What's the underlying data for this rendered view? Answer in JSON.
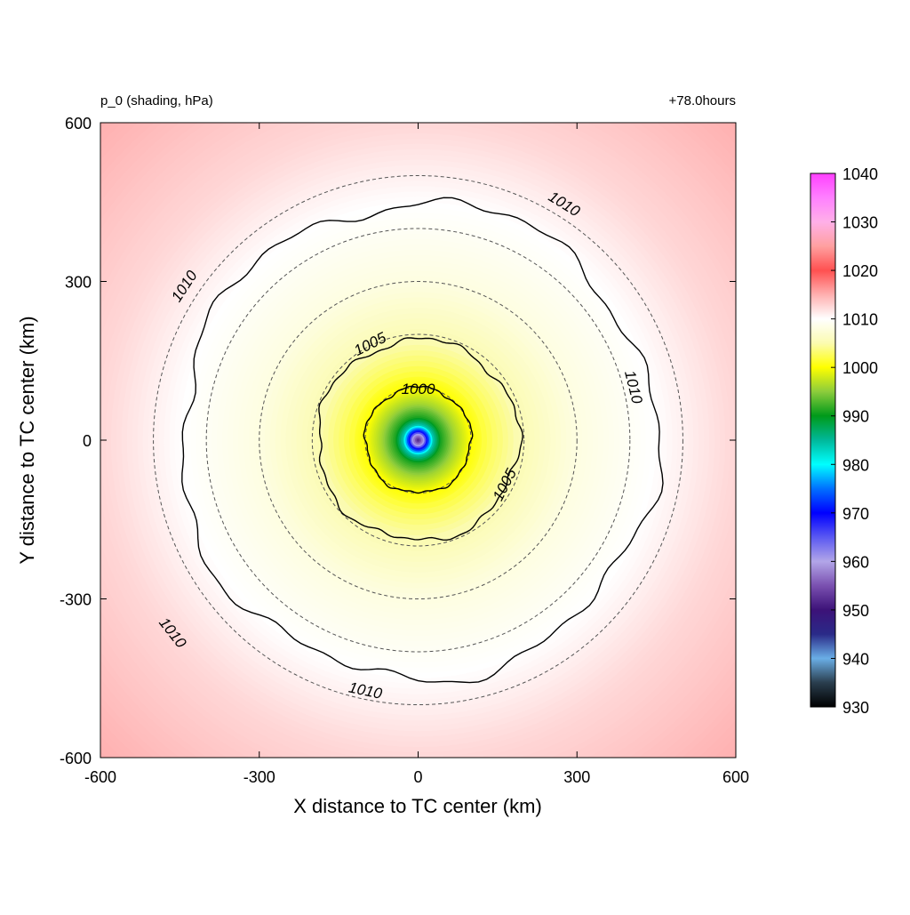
{
  "chart_data": {
    "type": "heatmap",
    "title_left": "p_0 (shading, hPa)",
    "title_right": "+78.0hours",
    "xlabel": "X distance to TC center (km)",
    "ylabel": "Y distance to TC center (km)",
    "xlim": [
      -600,
      600
    ],
    "ylim": [
      -600,
      600
    ],
    "xticks": [
      -600,
      -300,
      0,
      300,
      600
    ],
    "yticks": [
      -600,
      -300,
      0,
      300,
      600
    ],
    "field": {
      "center_pressure": 950,
      "radial_profile": [
        {
          "r": 0,
          "p": 950
        },
        {
          "r": 10,
          "p": 958
        },
        {
          "r": 20,
          "p": 972
        },
        {
          "r": 30,
          "p": 984
        },
        {
          "r": 45,
          "p": 991
        },
        {
          "r": 70,
          "p": 996
        },
        {
          "r": 100,
          "p": 1000
        },
        {
          "r": 150,
          "p": 1003
        },
        {
          "r": 190,
          "p": 1005
        },
        {
          "r": 300,
          "p": 1008
        },
        {
          "r": 450,
          "p": 1010
        },
        {
          "r": 600,
          "p": 1012.5
        },
        {
          "r": 850,
          "p": 1015
        }
      ]
    },
    "contours": [
      {
        "level": 1000,
        "label": "1000",
        "radius_km": 100
      },
      {
        "level": 1005,
        "label": "1005",
        "radius_km": 190
      },
      {
        "level": 1010,
        "label": "1010",
        "radius_km": 450
      }
    ],
    "contour_labels": [
      {
        "text": "1000",
        "x": 0,
        "y": 95
      },
      {
        "text": "1005",
        "x": -90,
        "y": 180
      },
      {
        "text": "1005",
        "x": 165,
        "y": -85
      },
      {
        "text": "1010",
        "x": 275,
        "y": 445
      },
      {
        "text": "1010",
        "x": -440,
        "y": 290
      },
      {
        "text": "1010",
        "x": 405,
        "y": 100
      },
      {
        "text": "1010",
        "x": -465,
        "y": -365
      },
      {
        "text": "1010",
        "x": -100,
        "y": -475
      }
    ],
    "range_rings_km": [
      100,
      200,
      300,
      400,
      500
    ],
    "colorbar": {
      "min": 930,
      "max": 1040,
      "ticks": [
        930,
        940,
        950,
        960,
        970,
        980,
        990,
        1000,
        1010,
        1020,
        1030,
        1040
      ],
      "stops": [
        {
          "v": 930,
          "c": "#000000"
        },
        {
          "v": 935,
          "c": "#2a3e4e"
        },
        {
          "v": 940,
          "c": "#6aaee6"
        },
        {
          "v": 945,
          "c": "#2a2a88"
        },
        {
          "v": 950,
          "c": "#3c1278"
        },
        {
          "v": 955,
          "c": "#7a50b0"
        },
        {
          "v": 960,
          "c": "#b2a6e8"
        },
        {
          "v": 965,
          "c": "#5a58f2"
        },
        {
          "v": 970,
          "c": "#0000ff"
        },
        {
          "v": 975,
          "c": "#0070ff"
        },
        {
          "v": 980,
          "c": "#00ffff"
        },
        {
          "v": 985,
          "c": "#00b89a"
        },
        {
          "v": 990,
          "c": "#009a1a"
        },
        {
          "v": 995,
          "c": "#8ccc3c"
        },
        {
          "v": 1000,
          "c": "#ffff00"
        },
        {
          "v": 1005,
          "c": "#fbfbb0"
        },
        {
          "v": 1010,
          "c": "#ffffff"
        },
        {
          "v": 1015,
          "c": "#ffb0b0"
        },
        {
          "v": 1020,
          "c": "#ff5050"
        },
        {
          "v": 1025,
          "c": "#ffa0a0"
        },
        {
          "v": 1030,
          "c": "#ffb0e8"
        },
        {
          "v": 1035,
          "c": "#ff80ff"
        },
        {
          "v": 1040,
          "c": "#ff40ff"
        }
      ]
    }
  }
}
